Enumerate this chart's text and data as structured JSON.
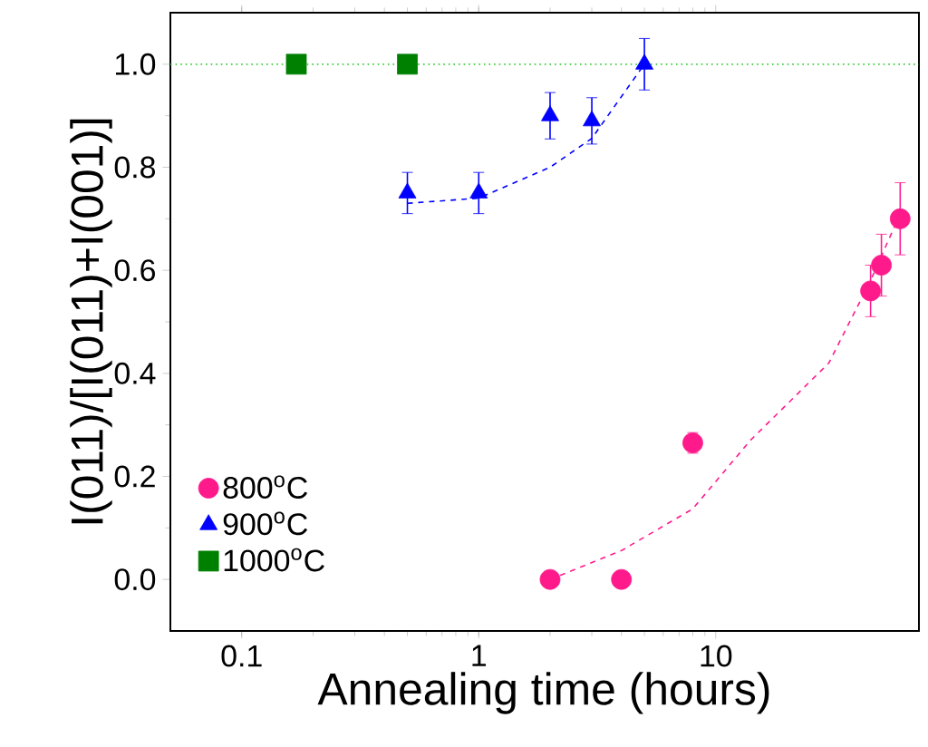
{
  "chart_data": {
    "type": "scatter",
    "xlabel": "Annealing time (hours)",
    "ylabel": "I(011)/[I(011)+I(001)]",
    "log": "x",
    "xlim": [
      0.05,
      72
    ],
    "ylim": [
      -0.1,
      1.1
    ],
    "xticks": [
      0.1,
      1,
      10
    ],
    "yticks": [
      {
        "value": 0,
        "label": "0.0"
      },
      {
        "value": 0.2,
        "label": "0.2"
      },
      {
        "value": 0.4,
        "label": "0.4"
      },
      {
        "value": 0.6,
        "label": "0.6"
      },
      {
        "value": 0.8,
        "label": "0.8"
      },
      {
        "value": 1,
        "label": "1.0"
      }
    ],
    "grid": false,
    "legend": "bottom left",
    "ref_lines": [
      {
        "axis": "y",
        "value": 1.0,
        "color": "#33cc33",
        "line_style": "dotted"
      }
    ],
    "series": [
      {
        "name": "800$^{o}$C",
        "color": "#ff1a8c",
        "marker": "circle",
        "x": [
          2,
          4,
          8,
          45,
          50,
          60
        ],
        "values": [
          0.0,
          0.0,
          0.265,
          0.56,
          0.61,
          0.7
        ],
        "errors": [
          null,
          null,
          0.02,
          0.05,
          0.06,
          0.07
        ]
      },
      {
        "name": "900$^{o}$C",
        "color": "#0000ff",
        "marker": "triangle",
        "x": [
          0.5,
          1,
          2,
          3,
          5
        ],
        "values": [
          0.75,
          0.75,
          0.9,
          0.89,
          1.0
        ],
        "errors": [
          0.04,
          0.04,
          0.045,
          0.045,
          0.05
        ]
      },
      {
        "name": "1000$^{o}$C",
        "color": "#008000",
        "marker": "square",
        "x": [
          0.17,
          0.5
        ],
        "values": [
          1.0,
          1.0
        ]
      },
      {
        "type": "line",
        "color": "#ff1a8c",
        "line_style": "dashed",
        "marker": "none",
        "x": [
          2,
          4,
          8,
          14,
          30,
          45,
          60
        ],
        "values": [
          0.0,
          0.056,
          0.137,
          0.27,
          0.42,
          0.58,
          0.71
        ]
      },
      {
        "type": "line",
        "color": "#0000ff",
        "line_style": "dashed",
        "marker": "none",
        "x": [
          0.5,
          1,
          2,
          3,
          5
        ],
        "values": [
          0.73,
          0.74,
          0.8,
          0.856,
          1.0
        ]
      }
    ]
  }
}
